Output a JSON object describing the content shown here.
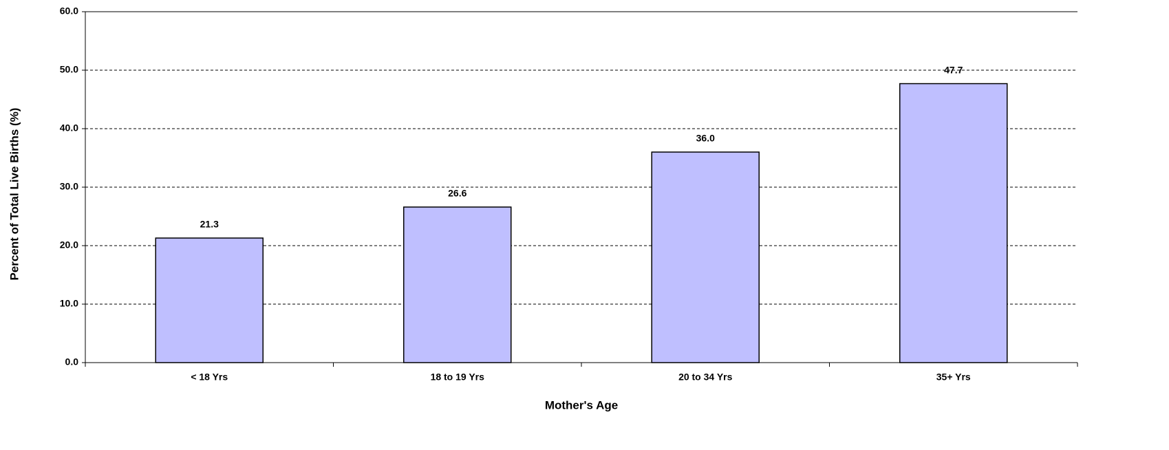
{
  "chart_data": {
    "type": "bar",
    "x_label": "Mother's Age",
    "y_label": "Percent of Total Live Births (%)",
    "categories": [
      "< 18 Yrs",
      "18 to 19 Yrs",
      "20 to 34 Yrs",
      "35+ Yrs"
    ],
    "values": [
      21.3,
      26.6,
      36.0,
      47.7
    ],
    "value_labels": [
      "21.3",
      "26.6",
      "36.0",
      "47.7"
    ],
    "color": "#bfbfff",
    "ylim": [
      0,
      60
    ],
    "yticks": [
      {
        "value": 0,
        "label": "0.0"
      },
      {
        "value": 10,
        "label": "10.0"
      },
      {
        "value": 20,
        "label": "20.0"
      },
      {
        "value": 30,
        "label": "30.0"
      },
      {
        "value": 40,
        "label": "40.0"
      },
      {
        "value": 50,
        "label": "50.0"
      },
      {
        "value": 60,
        "label": "60.0"
      }
    ],
    "grid": true
  }
}
